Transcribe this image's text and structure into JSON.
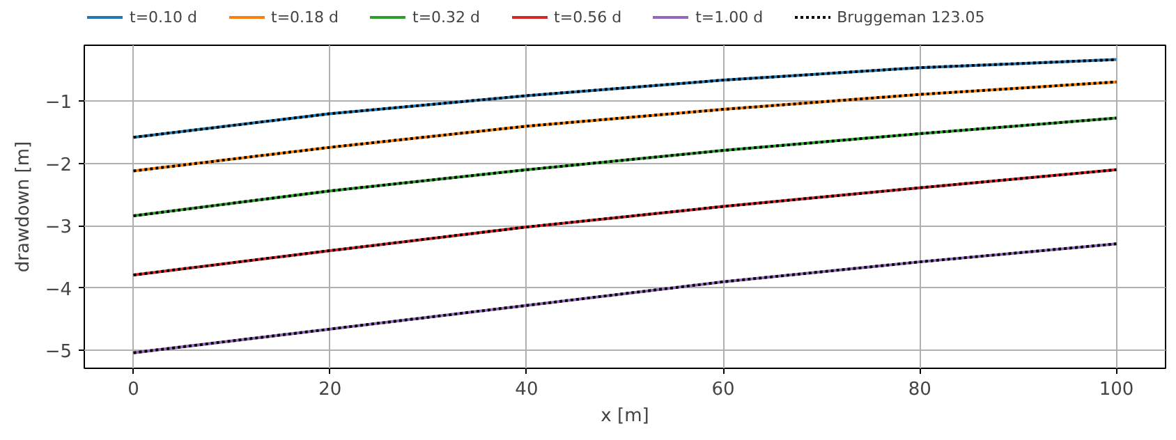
{
  "chart_data": {
    "type": "line",
    "xlabel": "x [m]",
    "ylabel": "drawdown [m]",
    "x": [
      0,
      20,
      40,
      60,
      80,
      100
    ],
    "series": [
      {
        "name": "t=0.10 d",
        "color": "#1f77b4",
        "values": [
          -1.58,
          -1.2,
          -0.91,
          -0.66,
          -0.46,
          -0.33
        ]
      },
      {
        "name": "t=0.18 d",
        "color": "#ff7f0e",
        "values": [
          -2.12,
          -1.74,
          -1.4,
          -1.13,
          -0.89,
          -0.69
        ]
      },
      {
        "name": "t=0.32 d",
        "color": "#2ca02c",
        "values": [
          -2.84,
          -2.44,
          -2.1,
          -1.79,
          -1.52,
          -1.27
        ]
      },
      {
        "name": "t=0.56 d",
        "color": "#d62728",
        "values": [
          -3.79,
          -3.4,
          -3.02,
          -2.69,
          -2.39,
          -2.1
        ]
      },
      {
        "name": "t=1.00 d",
        "color": "#9467bd",
        "values": [
          -5.04,
          -4.66,
          -4.28,
          -3.9,
          -3.58,
          -3.29
        ]
      },
      {
        "name": "Bruggeman 123.05",
        "color": "#000000",
        "line_style": "dotted",
        "values": [
          -1.58,
          -1.2,
          -0.91,
          -0.66,
          -0.46,
          -0.33
        ]
      },
      {
        "color": "#000000",
        "line_style": "dotted",
        "values": [
          -2.12,
          -1.74,
          -1.4,
          -1.13,
          -0.89,
          -0.69
        ]
      },
      {
        "color": "#000000",
        "line_style": "dotted",
        "values": [
          -2.84,
          -2.44,
          -2.1,
          -1.79,
          -1.52,
          -1.27
        ]
      },
      {
        "color": "#000000",
        "line_style": "dotted",
        "values": [
          -3.79,
          -3.4,
          -3.02,
          -2.69,
          -2.39,
          -2.1
        ]
      },
      {
        "color": "#000000",
        "line_style": "dotted",
        "values": [
          -5.04,
          -4.66,
          -4.28,
          -3.9,
          -3.58,
          -3.29
        ]
      }
    ],
    "xlim": [
      -5,
      105
    ],
    "ylim": [
      -5.29,
      -0.1
    ],
    "xticks": [
      0,
      20,
      40,
      60,
      80,
      100
    ],
    "yticks": [
      {
        "value": -5,
        "label": "−5"
      },
      {
        "value": -4,
        "label": "−4"
      },
      {
        "value": -3,
        "label": "−3"
      },
      {
        "value": -2,
        "label": "−2"
      },
      {
        "value": -1,
        "label": "−1"
      }
    ],
    "grid": true,
    "legend": "top",
    "line_style": "solid",
    "marker": "none"
  }
}
